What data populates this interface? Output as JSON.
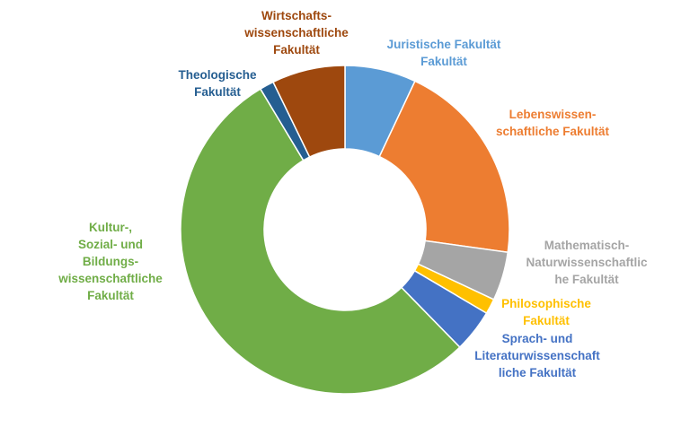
{
  "chart_data": {
    "type": "pie",
    "donut": true,
    "categories": [
      "Juristische Fakultät Fakultät",
      "Lebenswissenschaftliche Fakultät",
      "Mathematisch-Naturwissenschaftliche Fakultät",
      "Philosophische Fakultät",
      "Sprach- und Literaturwissenschaftliche Fakultät",
      "Kultur-, Sozial- und Bildungswissenschaftliche Fakultät",
      "Theologische Fakultät",
      "Wirtschaftswissenschaftliche Fakultät"
    ],
    "values": [
      7.0,
      20.2,
      4.8,
      1.5,
      4.2,
      53.7,
      1.4,
      7.2
    ],
    "colors": [
      "#5B9BD5",
      "#ED7D31",
      "#A5A5A5",
      "#FFC000",
      "#4472C4",
      "#70AD47",
      "#255E91",
      "#9E480E"
    ],
    "labels": [
      {
        "lines": [
          "Juristische Fakultät",
          "Fakultät"
        ],
        "color": "#5B9BD5"
      },
      {
        "lines": [
          "Lebenswissen-",
          "schaftliche Fakultät"
        ],
        "color": "#ED7D31"
      },
      {
        "lines": [
          "Mathematisch-",
          "Naturwissenschaftlic",
          "he Fakultät"
        ],
        "color": "#A5A5A5"
      },
      {
        "lines": [
          "Philosophische",
          "Fakultät"
        ],
        "color": "#FFC000"
      },
      {
        "lines": [
          "Sprach- und",
          "Literaturwissenschaft",
          "liche Fakultät"
        ],
        "color": "#4472C4"
      },
      {
        "lines": [
          "Kultur-,",
          "Sozial- und",
          "Bildungs-",
          "wissenschaftliche",
          "Fakultät"
        ],
        "color": "#70AD47"
      },
      {
        "lines": [
          "Theologische",
          "Fakultät"
        ],
        "color": "#255E91"
      },
      {
        "lines": [
          "Wirtschafts-",
          "wissenschaftliche",
          "Fakultät"
        ],
        "color": "#9E480E"
      }
    ]
  }
}
